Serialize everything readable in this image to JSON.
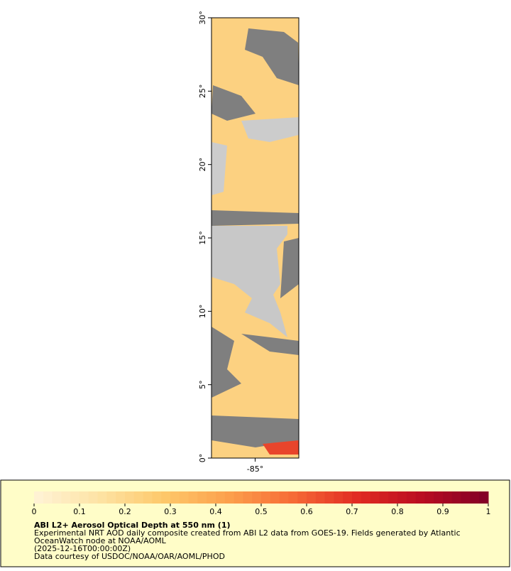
{
  "map": {
    "xlim": [
      -88,
      -82
    ],
    "ylim": [
      0,
      30
    ],
    "xticks": [
      {
        "value": -85,
        "label": "-85°"
      }
    ],
    "yticks": [
      {
        "value": 0,
        "label": "0°"
      },
      {
        "value": 5,
        "label": "5°"
      },
      {
        "value": 10,
        "label": "10°"
      },
      {
        "value": 15,
        "label": "15°"
      },
      {
        "value": 20,
        "label": "20°"
      },
      {
        "value": 25,
        "label": "25°"
      },
      {
        "value": 30,
        "label": "30°"
      }
    ]
  },
  "colorbar": {
    "range": [
      0,
      1
    ],
    "ticks": [
      0,
      0.1,
      0.2,
      0.3,
      0.4,
      0.5,
      0.6,
      0.7,
      0.8,
      0.9,
      1
    ],
    "colors": [
      "#fff3d6",
      "#fde3a4",
      "#fdc86a",
      "#fca04c",
      "#f66a36",
      "#e02a22",
      "#b80c22",
      "#800026"
    ]
  },
  "legend": {
    "title": "ABI L2+ Aerosol Optical Depth at 550 nm (1)",
    "lines": [
      "Experimental NRT AOD daily composite created from ABI L2 data from GOES-19. Fields generated by Atlantic",
      "OceanWatch node at NOAA/AOML",
      "(2025-12-16T00:00:00Z)",
      "Data courtesy of USDOC/NOAA/OAR/AOML/PHOD"
    ]
  }
}
